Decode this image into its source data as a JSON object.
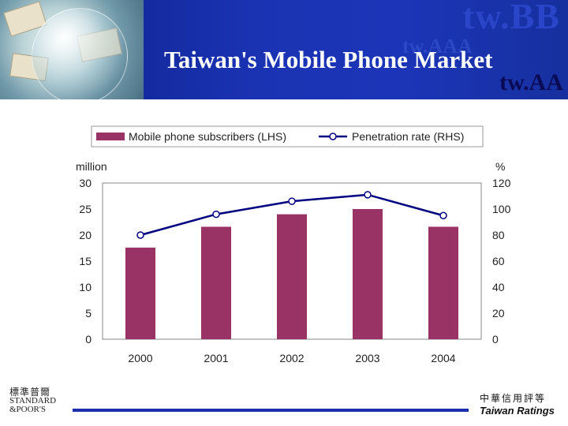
{
  "header": {
    "title": "Taiwan's Mobile Phone Market",
    "ghost_big": "tw.BB",
    "ghost_small": "tw.AAA",
    "rating_tag": "tw.AA"
  },
  "chart_data": {
    "type": "bar",
    "categories": [
      "2000",
      "2001",
      "2002",
      "2003",
      "2004"
    ],
    "series": [
      {
        "name": "Mobile phone subscribers (LHS)",
        "type": "bar",
        "axis": "left",
        "values": [
          17.6,
          21.6,
          24.0,
          25.0,
          21.6
        ]
      },
      {
        "name": "Penetration rate (RHS)",
        "type": "line",
        "axis": "right",
        "values": [
          80,
          96,
          106,
          111,
          95
        ]
      }
    ],
    "ylabel_left": "million",
    "ylabel_right": "%",
    "ylim_left": [
      0,
      30
    ],
    "ylim_right": [
      0,
      120
    ],
    "yticks_left": [
      "0",
      "5",
      "10",
      "15",
      "20",
      "25",
      "30"
    ],
    "yticks_right": [
      "0",
      "20",
      "40",
      "60",
      "80",
      "100",
      "120"
    ],
    "legend_position": "top",
    "grid": false,
    "colors": {
      "bar": "#993366",
      "line": "#000080",
      "plot_bg": "#ffffff"
    }
  },
  "footer": {
    "sp_cn": "標準普爾",
    "sp_en_1": "STANDARD",
    "sp_en_2": "&POOR'S",
    "tr_cn": "中華信用評等",
    "tr_en": "Taiwan Ratings"
  }
}
